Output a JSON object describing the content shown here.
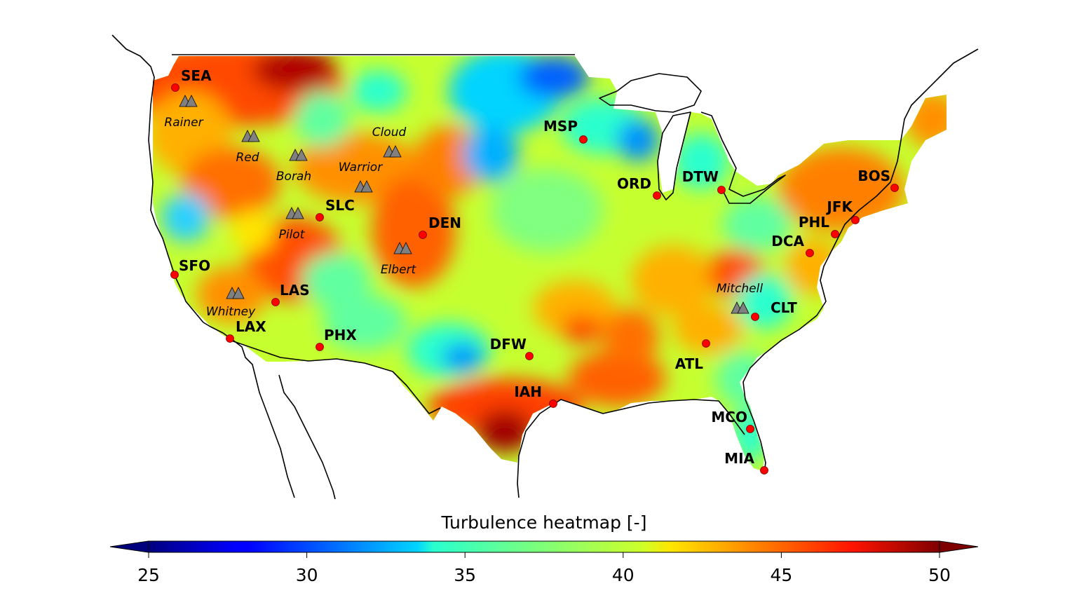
{
  "colorbar": {
    "label": "Turbulence heatmap [-]",
    "min": 25,
    "max": 50,
    "ticks": [
      "25",
      "30",
      "35",
      "40",
      "45",
      "50"
    ],
    "colormap": "jet",
    "extend": "both"
  },
  "airports": [
    {
      "code": "SEA",
      "lon": -122.31,
      "lat": 47.45
    },
    {
      "code": "SFO",
      "lon": -122.38,
      "lat": 37.62
    },
    {
      "code": "LAX",
      "lon": -118.41,
      "lat": 33.94
    },
    {
      "code": "LAS",
      "lon": -115.15,
      "lat": 36.08
    },
    {
      "code": "PHX",
      "lon": -112.01,
      "lat": 33.43
    },
    {
      "code": "SLC",
      "lon": -111.98,
      "lat": 40.79
    },
    {
      "code": "DEN",
      "lon": -104.67,
      "lat": 39.86
    },
    {
      "code": "DFW",
      "lon": -97.04,
      "lat": 32.9
    },
    {
      "code": "IAH",
      "lon": -95.34,
      "lat": 29.98
    },
    {
      "code": "MSP",
      "lon": -93.22,
      "lat": 44.88
    },
    {
      "code": "ORD",
      "lon": -87.9,
      "lat": 41.98
    },
    {
      "code": "DTW",
      "lon": -83.35,
      "lat": 42.21
    },
    {
      "code": "ATL",
      "lon": -84.43,
      "lat": 33.64
    },
    {
      "code": "CLT",
      "lon": -80.94,
      "lat": 35.21
    },
    {
      "code": "MCO",
      "lon": -81.31,
      "lat": 28.43
    },
    {
      "code": "MIA",
      "lon": -80.29,
      "lat": 25.79
    },
    {
      "code": "DCA",
      "lon": -77.04,
      "lat": 38.85
    },
    {
      "code": "PHL",
      "lon": -75.24,
      "lat": 39.87
    },
    {
      "code": "JFK",
      "lon": -73.78,
      "lat": 40.64
    },
    {
      "code": "BOS",
      "lon": -71.01,
      "lat": 42.36
    }
  ],
  "peaks": [
    {
      "name": "Rainer",
      "lon": -121.76,
      "lat": 46.85
    },
    {
      "name": "Red",
      "lon": -116.7,
      "lat": 45.2
    },
    {
      "name": "Borah",
      "lon": -113.78,
      "lat": 44.14
    },
    {
      "name": "Cloud",
      "lon": -107.17,
      "lat": 44.38
    },
    {
      "name": "Warrior",
      "lon": -109.3,
      "lat": 42.7
    },
    {
      "name": "Pilot",
      "lon": -114.1,
      "lat": 41.0
    },
    {
      "name": "Elbert",
      "lon": -106.45,
      "lat": 39.12
    },
    {
      "name": "Whitney",
      "lon": -118.29,
      "lat": 36.58
    },
    {
      "name": "Mitchell",
      "lon": -82.27,
      "lat": 35.77
    }
  ],
  "colors": {
    "airport_marker": "#ff0000",
    "peak_marker": "#808080",
    "coastline": "#000000"
  }
}
